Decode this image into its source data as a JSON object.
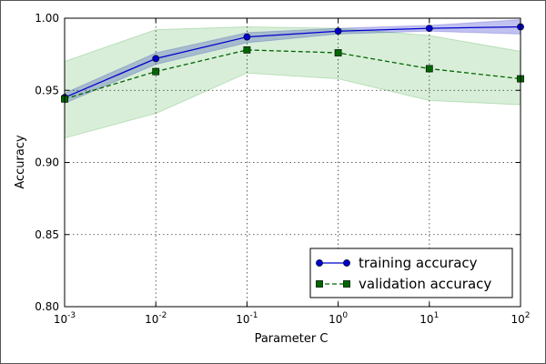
{
  "chart_data": {
    "type": "line",
    "title": "",
    "xlabel": "Parameter C",
    "ylabel": "Accuracy",
    "x_scale": "log",
    "x": [
      0.001,
      0.01,
      0.1,
      1,
      10,
      100
    ],
    "xlim": [
      0.001,
      100
    ],
    "ylim": [
      0.8,
      1.0
    ],
    "x_ticks": [
      {
        "value": 0.001,
        "base": "10",
        "exp": "-3"
      },
      {
        "value": 0.01,
        "base": "10",
        "exp": "-2"
      },
      {
        "value": 0.1,
        "base": "10",
        "exp": "-1"
      },
      {
        "value": 1,
        "base": "10",
        "exp": "0"
      },
      {
        "value": 10,
        "base": "10",
        "exp": "1"
      },
      {
        "value": 100,
        "base": "10",
        "exp": "2"
      }
    ],
    "y_ticks": [
      {
        "value": 0.8,
        "label": "0.80"
      },
      {
        "value": 0.85,
        "label": "0.85"
      },
      {
        "value": 0.9,
        "label": "0.90"
      },
      {
        "value": 0.95,
        "label": "0.95"
      },
      {
        "value": 1.0,
        "label": "1.00"
      }
    ],
    "grid": true,
    "legend_position": "bottom-right",
    "series": [
      {
        "name": "training accuracy",
        "color": "#0000cc",
        "marker": "circle",
        "line_style": "solid",
        "values": [
          0.945,
          0.972,
          0.987,
          0.991,
          0.993,
          0.994
        ],
        "band_upper": [
          0.948,
          0.976,
          0.99,
          0.993,
          0.995,
          0.999
        ],
        "band_lower": [
          0.941,
          0.968,
          0.983,
          0.989,
          0.991,
          0.989
        ],
        "band_color": "#3333cc"
      },
      {
        "name": "validation accuracy",
        "color": "#006600",
        "marker": "square",
        "line_style": "dashed",
        "values": [
          0.944,
          0.963,
          0.978,
          0.976,
          0.965,
          0.958
        ],
        "band_upper": [
          0.97,
          0.992,
          0.994,
          0.993,
          0.988,
          0.977
        ],
        "band_lower": [
          0.917,
          0.934,
          0.962,
          0.958,
          0.943,
          0.94
        ],
        "band_color": "#2ca02c"
      }
    ]
  }
}
